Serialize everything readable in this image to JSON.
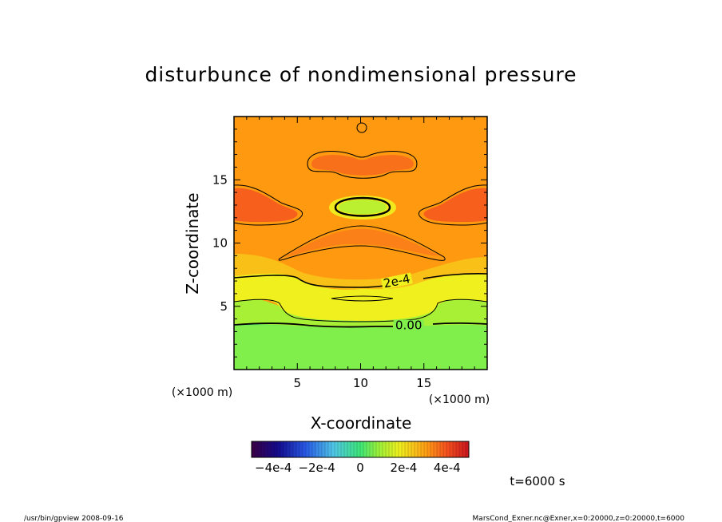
{
  "chart_data": {
    "type": "heatmap",
    "title": "disturbunce of nondimensional pressure",
    "xlabel": "X-coordinate",
    "ylabel": "Z-coordinate",
    "x_unit": "(×1000 m)",
    "z_unit": "(×1000 m)",
    "xlim": [
      0,
      20
    ],
    "zlim": [
      0,
      20
    ],
    "x_ticks": [
      {
        "value": 5,
        "label": "5"
      },
      {
        "value": 10,
        "label": "10"
      },
      {
        "value": 15,
        "label": "15"
      }
    ],
    "z_ticks": [
      {
        "value": 5,
        "label": "5"
      },
      {
        "value": 10,
        "label": "10"
      },
      {
        "value": 15,
        "label": "15"
      }
    ],
    "colorbar": {
      "range": [
        -0.0005,
        0.0005
      ],
      "ticks": [
        {
          "value": -0.0004,
          "label": "−4e-4"
        },
        {
          "value": -0.0002,
          "label": "−2e-4"
        },
        {
          "value": 0,
          "label": "0"
        },
        {
          "value": 0.0002,
          "label": "2e-4"
        },
        {
          "value": 0.0004,
          "label": "4e-4"
        }
      ]
    },
    "contour_labels": [
      {
        "text": "2e-4",
        "x": 12.9,
        "z": 6.8,
        "angle": -12
      },
      {
        "text": "0.00",
        "x": 13.8,
        "z": 3.3,
        "angle": 0
      }
    ],
    "time_label": "t=6000 s",
    "footer_left": "/usr/bin/gpview   2008-09-16",
    "footer_right": "MarsCond_Exner.nc@Exner,x=0:20000,z=0:20000,t=6000"
  }
}
